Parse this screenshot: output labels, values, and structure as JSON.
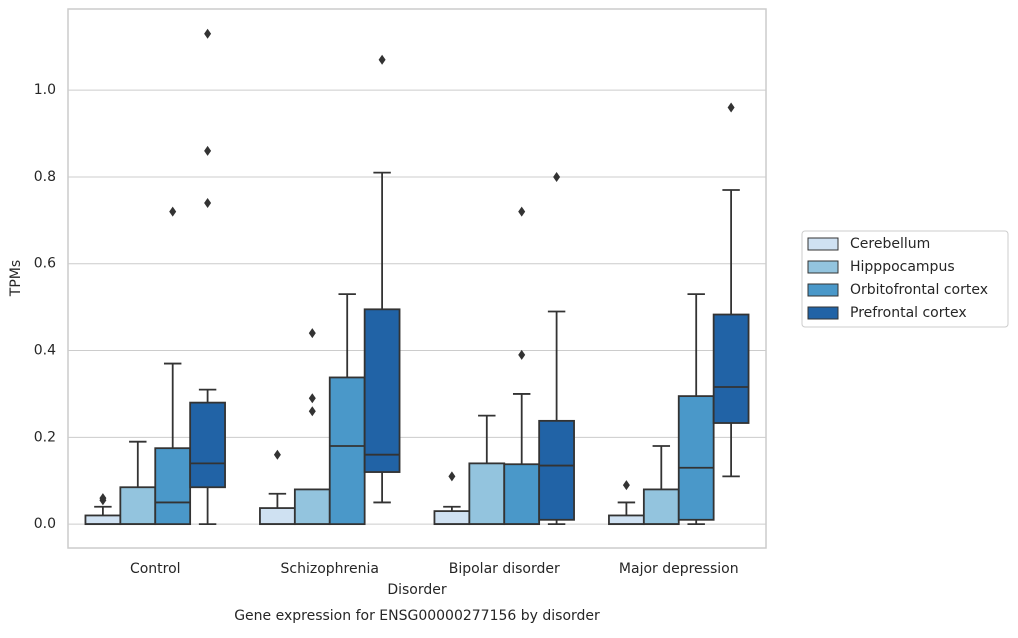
{
  "chart_data": {
    "type": "box",
    "title": "Gene expression for ENSG00000277156 by disorder",
    "xlabel": "Disorder",
    "ylabel": "TPMs",
    "categories": [
      "Control",
      "Schizophrenia",
      "Bipolar disorder",
      "Major depression"
    ],
    "ylim": [
      -0.055,
      1.187
    ],
    "yticks": [
      {
        "value": 0,
        "label": "0.0"
      },
      0.2,
      0.4,
      0.6,
      0.8,
      {
        "value": 1,
        "label": "1.0"
      }
    ],
    "grid": true,
    "legend": "right",
    "series": [
      {
        "name": "Cerebellum",
        "color": "#cfe1f2",
        "values": [
          {
            "min": 0,
            "q1": 0,
            "median": 0,
            "q3": 0.02,
            "max": 0.04,
            "outliers": [
              0.06,
              0.055
            ]
          },
          {
            "min": 0,
            "q1": 0,
            "median": 0,
            "q3": 0.037,
            "max": 0.07,
            "outliers": [
              0.16
            ]
          },
          {
            "min": 0,
            "q1": 0,
            "median": 0,
            "q3": 0.03,
            "max": 0.04,
            "outliers": [
              0.11
            ]
          },
          {
            "min": 0,
            "q1": 0,
            "median": 0,
            "q3": 0.02,
            "max": 0.05,
            "outliers": [
              0.09
            ]
          }
        ]
      },
      {
        "name": "Hipppocampus",
        "color": "#93c4de",
        "values": [
          {
            "min": 0,
            "q1": 0,
            "median": 0,
            "q3": 0.085,
            "max": 0.19,
            "outliers": []
          },
          {
            "min": 0,
            "q1": 0,
            "median": 0,
            "q3": 0.08,
            "max": 0.08,
            "outliers": [
              0.26,
              0.29,
              0.44
            ]
          },
          {
            "min": 0,
            "q1": 0,
            "median": 0,
            "q3": 0.14,
            "max": 0.25,
            "outliers": []
          },
          {
            "min": 0,
            "q1": 0,
            "median": 0,
            "q3": 0.08,
            "max": 0.18,
            "outliers": []
          }
        ]
      },
      {
        "name": "Orbitofrontal cortex",
        "color": "#4a98c9",
        "values": [
          {
            "min": 0,
            "q1": 0,
            "median": 0.05,
            "q3": 0.175,
            "max": 0.37,
            "outliers": [
              0.72
            ]
          },
          {
            "min": 0,
            "q1": 0,
            "median": 0.18,
            "q3": 0.338,
            "max": 0.53,
            "outliers": []
          },
          {
            "min": 0,
            "q1": 0,
            "median": 0,
            "q3": 0.138,
            "max": 0.3,
            "outliers": [
              0.39,
              0.72
            ]
          },
          {
            "min": 0,
            "q1": 0.01,
            "median": 0.13,
            "q3": 0.295,
            "max": 0.53,
            "outliers": []
          }
        ]
      },
      {
        "name": "Prefrontal cortex",
        "color": "#2163a6",
        "values": [
          {
            "min": 0,
            "q1": 0.085,
            "median": 0.14,
            "q3": 0.28,
            "max": 0.31,
            "outliers": [
              0.74,
              0.86,
              1.13
            ]
          },
          {
            "min": 0.05,
            "q1": 0.12,
            "median": 0.16,
            "q3": 0.495,
            "max": 0.81,
            "outliers": [
              1.07
            ]
          },
          {
            "min": 0,
            "q1": 0.01,
            "median": 0.135,
            "q3": 0.238,
            "max": 0.49,
            "outliers": [
              0.8
            ]
          },
          {
            "min": 0.11,
            "q1": 0.233,
            "median": 0.316,
            "q3": 0.483,
            "max": 0.77,
            "outliers": [
              0.96
            ]
          }
        ]
      }
    ]
  }
}
